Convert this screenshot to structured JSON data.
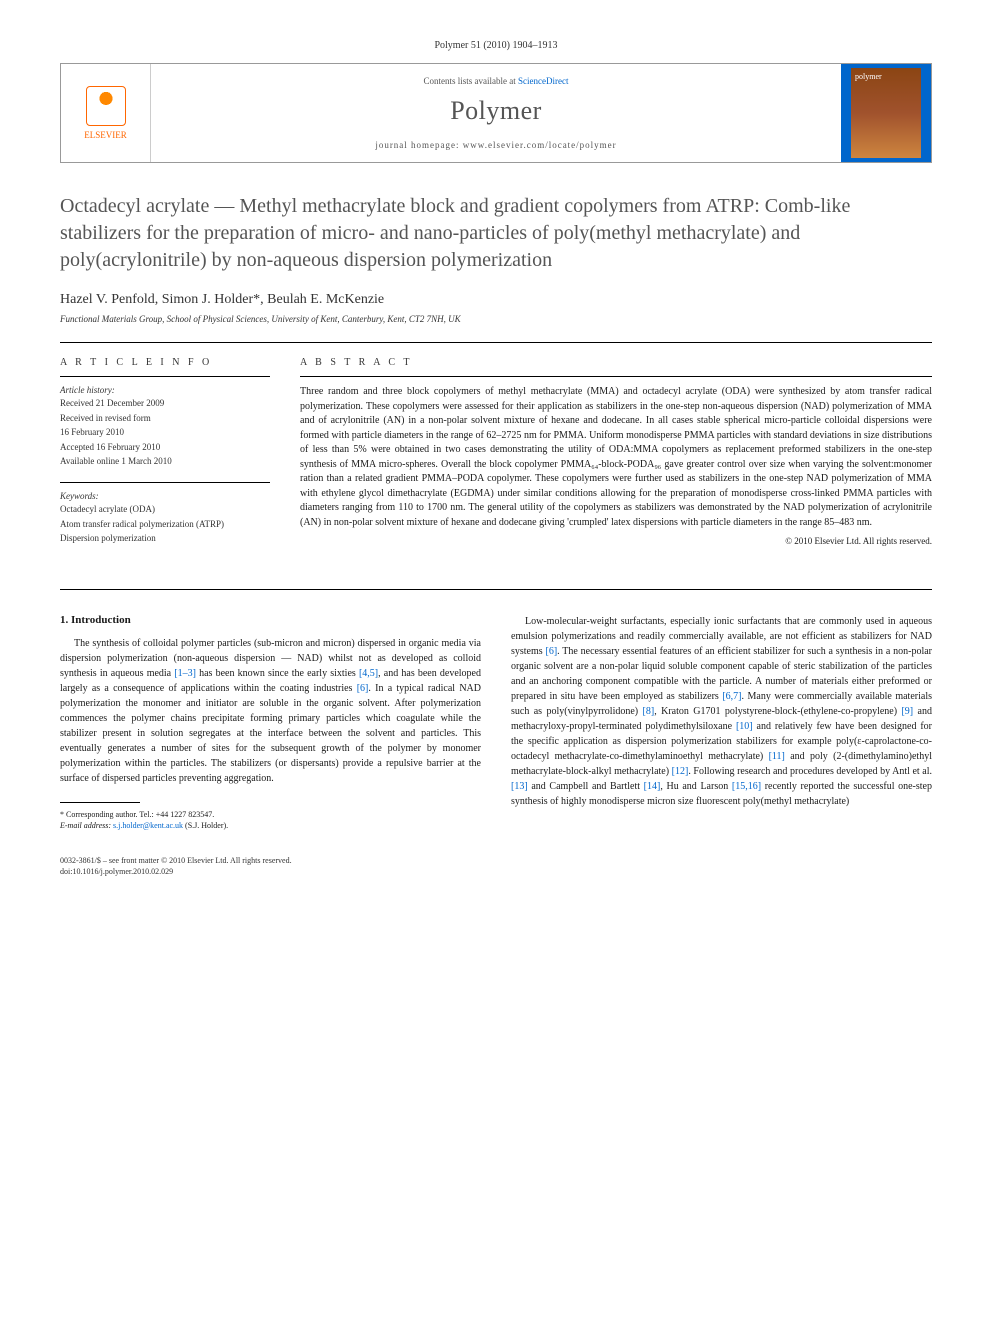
{
  "journal_header": "Polymer 51 (2010) 1904–1913",
  "header": {
    "contents_prefix": "Contents lists available at ",
    "contents_link": "ScienceDirect",
    "journal_name": "Polymer",
    "homepage_prefix": "journal homepage: ",
    "homepage_url": "www.elsevier.com/locate/polymer",
    "publisher": "ELSEVIER",
    "cover_label": "polymer"
  },
  "title": "Octadecyl acrylate — Methyl methacrylate block and gradient copolymers from ATRP: Comb-like stabilizers for the preparation of micro- and nano-particles of poly(methyl methacrylate) and poly(acrylonitrile) by non-aqueous dispersion polymerization",
  "authors": "Hazel V. Penfold, Simon J. Holder*, Beulah E. McKenzie",
  "affiliation": "Functional Materials Group, School of Physical Sciences, University of Kent, Canterbury, Kent, CT2 7NH, UK",
  "article_info": {
    "heading": "A R T I C L E   I N F O",
    "history_label": "Article history:",
    "received": "Received 21 December 2009",
    "revised_label": "Received in revised form",
    "revised_date": "16 February 2010",
    "accepted": "Accepted 16 February 2010",
    "online": "Available online 1 March 2010",
    "keywords_label": "Keywords:",
    "keywords": [
      "Octadecyl acrylate (ODA)",
      "Atom transfer radical polymerization (ATRP)",
      "Dispersion polymerization"
    ]
  },
  "abstract": {
    "heading": "A B S T R A C T",
    "text": "Three random and three block copolymers of methyl methacrylate (MMA) and octadecyl acrylate (ODA) were synthesized by atom transfer radical polymerization. These copolymers were assessed for their application as stabilizers in the one-step non-aqueous dispersion (NAD) polymerization of MMA and of acrylonitrile (AN) in a non-polar solvent mixture of hexane and dodecane. In all cases stable spherical micro-particle colloidal dispersions were formed with particle diameters in the range of 62–2725 nm for PMMA. Uniform monodisperse PMMA particles with standard deviations in size distributions of less than 5% were obtained in two cases demonstrating the utility of ODA:MMA copolymers as replacement preformed stabilizers in the one-step synthesis of MMA micro-spheres. Overall the block copolymer PMMA₆₄-block-PODA₉₆ gave greater control over size when varying the solvent:monomer ration than a related gradient PMMA–PODA copolymer. These copolymers were further used as stabilizers in the one-step NAD polymerization of MMA with ethylene glycol dimethacrylate (EGDMA) under similar conditions allowing for the preparation of monodisperse cross-linked PMMA particles with diameters ranging from 110 to 1700 nm. The general utility of the copolymers as stabilizers was demonstrated by the NAD polymerization of acrylonitrile (AN) in non-polar solvent mixture of hexane and dodecane giving 'crumpled' latex dispersions with particle diameters in the range 85–483 nm.",
    "copyright": "© 2010 Elsevier Ltd. All rights reserved."
  },
  "intro": {
    "heading": "1. Introduction",
    "col1": "The synthesis of colloidal polymer particles (sub-micron and micron) dispersed in organic media via dispersion polymerization (non-aqueous dispersion — NAD) whilst not as developed as colloid synthesis in aqueous media [1–3] has been known since the early sixties [4,5], and has been developed largely as a consequence of applications within the coating industries [6]. In a typical radical NAD polymerization the monomer and initiator are soluble in the organic solvent. After polymerization commences the polymer chains precipitate forming primary particles which coagulate while the stabilizer present in solution segregates at the interface between the solvent and particles. This eventually generates a number of sites for the subsequent growth of the polymer by monomer polymerization within the particles. The stabilizers (or dispersants) provide a repulsive barrier at the surface of dispersed particles preventing aggregation.",
    "col2": "Low-molecular-weight surfactants, especially ionic surfactants that are commonly used in aqueous emulsion polymerizations and readily commercially available, are not efficient as stabilizers for NAD systems [6]. The necessary essential features of an efficient stabilizer for such a synthesis in a non-polar organic solvent are a non-polar liquid soluble component capable of steric stabilization of the particles and an anchoring component compatible with the particle. A number of materials either preformed or prepared in situ have been employed as stabilizers [6,7]. Many were commercially available materials such as poly(vinylpyrrolidone) [8], Kraton G1701 polystyrene-block-(ethylene-co-propylene) [9] and methacryloxy-propyl-terminated polydimethylsiloxane [10] and relatively few have been designed for the specific application as dispersion polymerization stabilizers for example poly(ε-caprolactone-co-octadecyl methacrylate-co-dimethylaminoethyl methacrylate) [11] and poly (2-(dimethylamino)ethyl methacrylate-block-alkyl methacrylate) [12]. Following research and procedures developed by Antl et al. [13] and Campbell and Bartlett [14], Hu and Larson [15,16] recently reported the successful one-step synthesis of highly monodisperse micron size fluorescent poly(methyl methacrylate)"
  },
  "footnote": {
    "corresponding": "* Corresponding author. Tel.: +44 1227 823547.",
    "email_label": "E-mail address: ",
    "email": "s.j.holder@kent.ac.uk",
    "email_suffix": " (S.J. Holder)."
  },
  "footer": {
    "line1": "0032-3861/$ – see front matter © 2010 Elsevier Ltd. All rights reserved.",
    "line2": "doi:10.1016/j.polymer.2010.02.029"
  },
  "colors": {
    "link": "#0066cc",
    "text": "#1a1a1a",
    "muted": "#555555",
    "elsevier_orange": "#ff6600"
  }
}
